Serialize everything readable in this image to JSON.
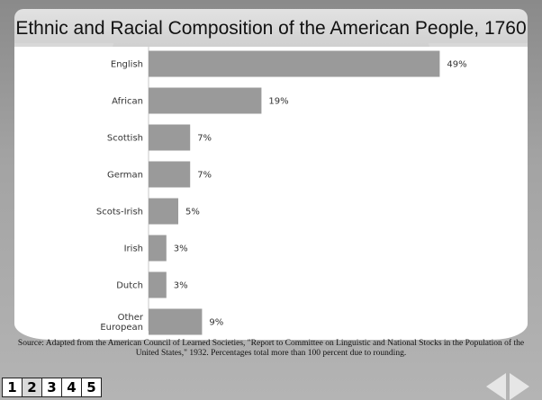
{
  "slide": {
    "source_text": "Source: Adapted from the American Council of Learned Societies, \"Report to Committee on Linguistic and National Stocks in the Population of the United States,\" 1932. Percentages total more than 100 percent due to rounding."
  },
  "nav": {
    "pages": [
      "1",
      "2",
      "3",
      "4",
      "5"
    ],
    "active_page": "2"
  },
  "colors": {
    "bar": "#9a9a9a",
    "background": "#a3a3a3",
    "panel": "#ffffff"
  },
  "chart_data": {
    "type": "bar",
    "orientation": "horizontal",
    "title": "Ethnic and Racial Composition of the American People, 1760",
    "categories": [
      "English",
      "African",
      "Scottish",
      "German",
      "Scots-Irish",
      "Irish",
      "Dutch",
      "Other European"
    ],
    "category_labels": [
      [
        "English"
      ],
      [
        "African"
      ],
      [
        "Scottish"
      ],
      [
        "German"
      ],
      [
        "Scots-Irish"
      ],
      [
        "Irish"
      ],
      [
        "Dutch"
      ],
      [
        "Other",
        "European"
      ]
    ],
    "values": [
      49,
      19,
      7,
      7,
      5,
      3,
      3,
      9
    ],
    "value_labels": [
      "49%",
      "19%",
      "7%",
      "7%",
      "5%",
      "3%",
      "3%",
      "9%"
    ],
    "unit": "%",
    "xlim": [
      0,
      50
    ],
    "grid": false,
    "legend": "none"
  }
}
